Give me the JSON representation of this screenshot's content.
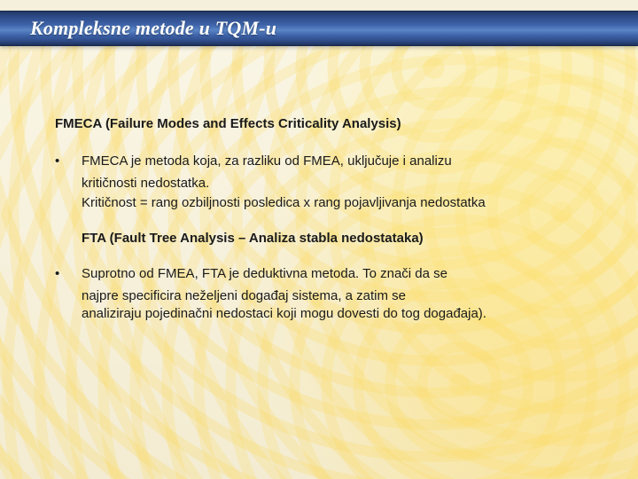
{
  "colors": {
    "title_bar_gradient": [
      "#243a66",
      "#2d4a86",
      "#3f64aa",
      "#5a85c6",
      "#3f64aa",
      "#2d4a86",
      "#1e3158"
    ],
    "title_text": "#ffffff",
    "body_text": "#1a1a1a",
    "background_base": "#f5f0dc",
    "background_highlight": "#ffe782"
  },
  "typography": {
    "title_font": "Times New Roman",
    "title_fontsize_pt": 17,
    "title_style": "italic bold",
    "body_font": "Arial",
    "body_fontsize_pt": 11,
    "heading_weight": "bold"
  },
  "slide": {
    "title": "Kompleksne metode u TQM-u",
    "heading1": "FMECA (Failure Modes and Effects Criticality Analysis)",
    "bullet1_line1": "FMECA je metoda koja, za razliku od FMEA, uključuje i analizu",
    "bullet1_line2": "kritičnosti nedostatka.",
    "bullet1_line3": "Kritičnost =  rang ozbiljnosti posledica x rang pojavljivanja nedostatka",
    "heading2": "FTA (Fault Tree Analysis – Analiza stabla nedostataka)",
    "bullet2_line1": "Suprotno od FMEA, FTA je deduktivna metoda. To znači da se",
    "bullet2_line2": "najpre specificira neželjeni događaj sistema, a zatim se",
    "bullet2_line3": "analiziraju pojedinačni nedostaci koji mogu dovesti do tog događaja).",
    "bullet_char": "•"
  }
}
